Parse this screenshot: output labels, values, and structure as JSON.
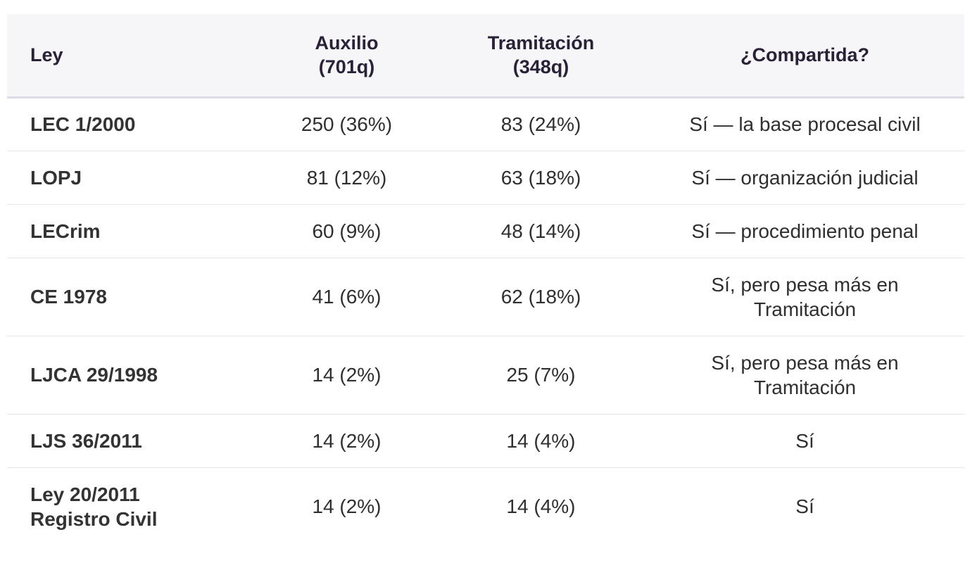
{
  "table": {
    "headers": {
      "ley": "Ley",
      "auxilio_line1": "Auxilio",
      "auxilio_line2": "(701q)",
      "tramitacion_line1": "Tramitación",
      "tramitacion_line2": "(348q)",
      "compartida": "¿Compartida?"
    },
    "rows": [
      {
        "ley_line1": "LEC 1/2000",
        "ley_line2": "",
        "auxilio": "250 (36%)",
        "tramitacion": "83 (24%)",
        "compartida_line1": "Sí — la base procesal civil",
        "compartida_line2": ""
      },
      {
        "ley_line1": "LOPJ",
        "ley_line2": "",
        "auxilio": "81 (12%)",
        "tramitacion": "63 (18%)",
        "compartida_line1": "Sí — organización judicial",
        "compartida_line2": ""
      },
      {
        "ley_line1": "LECrim",
        "ley_line2": "",
        "auxilio": "60 (9%)",
        "tramitacion": "48 (14%)",
        "compartida_line1": "Sí — procedimiento penal",
        "compartida_line2": ""
      },
      {
        "ley_line1": "CE 1978",
        "ley_line2": "",
        "auxilio": "41 (6%)",
        "tramitacion": "62 (18%)",
        "compartida_line1": "Sí, pero pesa más en",
        "compartida_line2": "Tramitación"
      },
      {
        "ley_line1": "LJCA 29/1998",
        "ley_line2": "",
        "auxilio": "14 (2%)",
        "tramitacion": "25 (7%)",
        "compartida_line1": "Sí, pero pesa más en",
        "compartida_line2": "Tramitación"
      },
      {
        "ley_line1": "LJS 36/2011",
        "ley_line2": "",
        "auxilio": "14 (2%)",
        "tramitacion": "14 (4%)",
        "compartida_line1": "Sí",
        "compartida_line2": ""
      },
      {
        "ley_line1": "Ley 20/2011",
        "ley_line2": "Registro Civil",
        "auxilio": "14 (2%)",
        "tramitacion": "14 (4%)",
        "compartida_line1": "Sí",
        "compartida_line2": ""
      }
    ]
  },
  "colors": {
    "header_background": "#f6f6f9",
    "header_text": "#2a2139",
    "body_text": "#2f2f2f",
    "row_divider": "#e4e4ea"
  }
}
